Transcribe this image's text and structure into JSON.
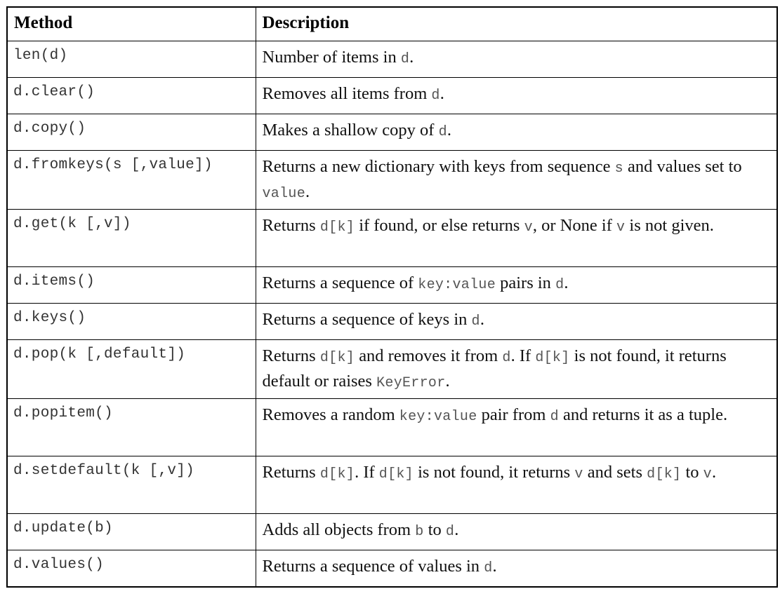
{
  "header": {
    "method": "Method",
    "description": "Description"
  },
  "rows": [
    {
      "method": "len(d)",
      "desc": [
        {
          "t": "Number of items in "
        },
        {
          "c": "d"
        },
        {
          "t": "."
        }
      ]
    },
    {
      "method": "d.clear()",
      "desc": [
        {
          "t": "Removes all items from "
        },
        {
          "c": "d"
        },
        {
          "t": "."
        }
      ]
    },
    {
      "method": "d.copy()",
      "desc": [
        {
          "t": "Makes a shallow copy of "
        },
        {
          "c": "d"
        },
        {
          "t": "."
        }
      ]
    },
    {
      "method": "d.fromkeys(s [,value])",
      "desc": [
        {
          "t": "Returns a new dictionary with keys from sequence "
        },
        {
          "c": "s"
        },
        {
          "t": " and values set to "
        },
        {
          "c": "value"
        },
        {
          "t": "."
        }
      ]
    },
    {
      "method": "d.get(k [,v])",
      "desc": [
        {
          "t": "Returns "
        },
        {
          "c": "d[k]"
        },
        {
          "t": " if found, or else returns "
        },
        {
          "c": "v"
        },
        {
          "t": ", or None if "
        },
        {
          "c": "v"
        },
        {
          "t": " is not given."
        }
      ]
    },
    {
      "method": "d.items()",
      "desc": [
        {
          "t": "Returns a sequence of "
        },
        {
          "c": "key:value"
        },
        {
          "t": " pairs in "
        },
        {
          "c": "d"
        },
        {
          "t": "."
        }
      ]
    },
    {
      "method": "d.keys()",
      "desc": [
        {
          "t": "Returns a sequence of keys in "
        },
        {
          "c": "d"
        },
        {
          "t": "."
        }
      ]
    },
    {
      "method": "d.pop(k [,default])",
      "desc": [
        {
          "t": "Returns "
        },
        {
          "c": "d[k]"
        },
        {
          "t": " and removes it from "
        },
        {
          "c": "d"
        },
        {
          "t": ". If "
        },
        {
          "c": "d[k]"
        },
        {
          "t": " is not found, it returns default or raises "
        },
        {
          "c": "KeyError"
        },
        {
          "t": "."
        }
      ]
    },
    {
      "method": "d.popitem()",
      "desc": [
        {
          "t": "Removes a random "
        },
        {
          "c": "key:value"
        },
        {
          "t": " pair from "
        },
        {
          "c": "d"
        },
        {
          "t": " and returns it as a tuple."
        }
      ]
    },
    {
      "method": "d.setdefault(k [,v])",
      "desc": [
        {
          "t": "Returns "
        },
        {
          "c": "d[k]"
        },
        {
          "t": ". If "
        },
        {
          "c": "d[k]"
        },
        {
          "t": " is not found, it returns "
        },
        {
          "c": "v"
        },
        {
          "t": " and sets "
        },
        {
          "c": "d[k]"
        },
        {
          "t": " to "
        },
        {
          "c": "v"
        },
        {
          "t": "."
        }
      ]
    },
    {
      "method": "d.update(b)",
      "desc": [
        {
          "t": "Adds all objects from "
        },
        {
          "c": "b"
        },
        {
          "t": " to "
        },
        {
          "c": "d"
        },
        {
          "t": "."
        }
      ]
    },
    {
      "method": "d.values()",
      "desc": [
        {
          "t": "Returns a sequence of values in "
        },
        {
          "c": "d"
        },
        {
          "t": "."
        }
      ]
    }
  ]
}
